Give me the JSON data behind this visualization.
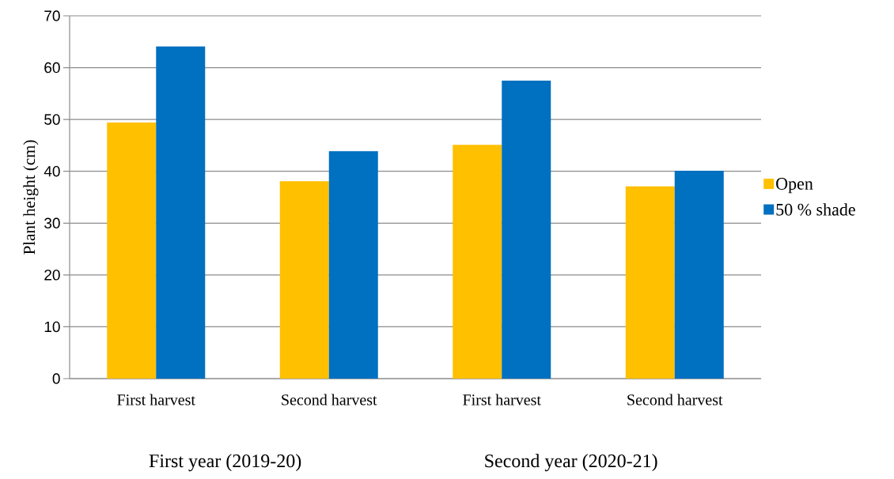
{
  "chart_data": {
    "type": "bar",
    "ylabel": "Plant height (cm)",
    "categories": [
      "First harvest",
      "Second harvest",
      "First harvest",
      "Second harvest"
    ],
    "series": [
      {
        "name": "Open",
        "color": "#ffc000",
        "values": [
          49.4,
          38.1,
          45.1,
          37.1
        ]
      },
      {
        "name": "50 % shade",
        "color": "#0070c0",
        "values": [
          64.1,
          43.9,
          57.5,
          40.1
        ]
      }
    ],
    "annotations": [
      "First year (2019-20)",
      "Second year (2020-21)"
    ],
    "ylim": [
      0,
      70
    ],
    "yticks": [
      0,
      10,
      20,
      30,
      40,
      50,
      60,
      70
    ],
    "grid": "y",
    "legend": "right"
  }
}
